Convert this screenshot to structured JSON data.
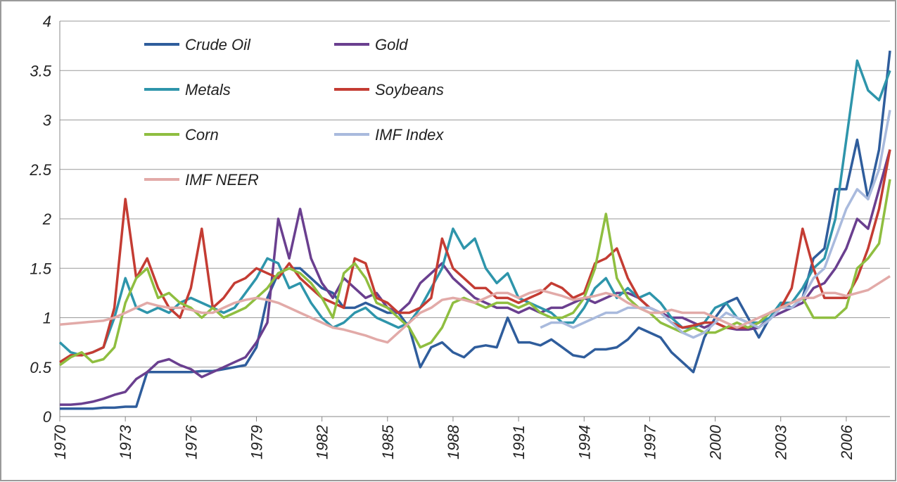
{
  "chart_data": {
    "type": "line",
    "x": [
      1970,
      1970.5,
      1971,
      1971.5,
      1972,
      1972.5,
      1973,
      1973.5,
      1974,
      1974.5,
      1975,
      1975.5,
      1976,
      1976.5,
      1977,
      1977.5,
      1978,
      1978.5,
      1979,
      1979.5,
      1980,
      1980.5,
      1981,
      1981.5,
      1982,
      1982.5,
      1983,
      1983.5,
      1984,
      1984.5,
      1985,
      1985.5,
      1986,
      1986.5,
      1987,
      1987.5,
      1988,
      1988.5,
      1989,
      1989.5,
      1990,
      1990.5,
      1991,
      1991.5,
      1992,
      1992.5,
      1993,
      1993.5,
      1994,
      1994.5,
      1995,
      1995.5,
      1996,
      1996.5,
      1997,
      1997.5,
      1998,
      1998.5,
      1999,
      1999.5,
      2000,
      2000.5,
      2001,
      2001.5,
      2002,
      2002.5,
      2003,
      2003.5,
      2004,
      2004.5,
      2005,
      2005.5,
      2006,
      2006.5,
      2007,
      2007.5,
      2008
    ],
    "series": [
      {
        "name": "Crude Oil",
        "color": "#2f5d9c",
        "values": [
          0.08,
          0.08,
          0.08,
          0.08,
          0.09,
          0.09,
          0.1,
          0.1,
          0.45,
          0.45,
          0.45,
          0.45,
          0.45,
          0.46,
          0.46,
          0.48,
          0.5,
          0.52,
          0.7,
          1.2,
          1.45,
          1.5,
          1.5,
          1.4,
          1.3,
          1.25,
          1.1,
          1.1,
          1.15,
          1.1,
          1.05,
          1.05,
          0.9,
          0.5,
          0.7,
          0.75,
          0.65,
          0.6,
          0.7,
          0.72,
          0.7,
          1.0,
          0.75,
          0.75,
          0.72,
          0.78,
          0.7,
          0.62,
          0.6,
          0.68,
          0.68,
          0.7,
          0.78,
          0.9,
          0.85,
          0.8,
          0.65,
          0.55,
          0.45,
          0.8,
          1.0,
          1.15,
          1.2,
          1.0,
          0.8,
          1.0,
          1.15,
          1.1,
          1.2,
          1.6,
          1.7,
          2.3,
          2.3,
          2.8,
          2.2,
          2.7,
          3.7
        ]
      },
      {
        "name": "Gold",
        "color": "#6a3f8f",
        "values": [
          0.12,
          0.12,
          0.13,
          0.15,
          0.18,
          0.22,
          0.25,
          0.38,
          0.45,
          0.55,
          0.58,
          0.52,
          0.48,
          0.4,
          0.45,
          0.5,
          0.55,
          0.6,
          0.75,
          0.95,
          2.0,
          1.6,
          2.1,
          1.6,
          1.35,
          1.2,
          1.4,
          1.3,
          1.2,
          1.25,
          1.1,
          1.05,
          1.15,
          1.35,
          1.45,
          1.55,
          1.4,
          1.3,
          1.2,
          1.15,
          1.1,
          1.1,
          1.05,
          1.1,
          1.05,
          1.1,
          1.1,
          1.15,
          1.2,
          1.15,
          1.2,
          1.25,
          1.25,
          1.2,
          1.1,
          1.05,
          1.0,
          1.0,
          0.95,
          0.9,
          0.95,
          0.9,
          0.88,
          0.88,
          0.9,
          1.0,
          1.05,
          1.1,
          1.15,
          1.3,
          1.35,
          1.5,
          1.7,
          2.0,
          1.9,
          2.3,
          2.7
        ]
      },
      {
        "name": "Metals",
        "color": "#2e95ab",
        "values": [
          0.75,
          0.65,
          0.62,
          0.65,
          0.7,
          1.0,
          1.4,
          1.1,
          1.05,
          1.1,
          1.05,
          1.15,
          1.2,
          1.15,
          1.1,
          1.05,
          1.1,
          1.25,
          1.4,
          1.6,
          1.55,
          1.3,
          1.35,
          1.15,
          1.0,
          0.9,
          0.95,
          1.05,
          1.1,
          1.0,
          0.95,
          0.9,
          0.95,
          1.1,
          1.3,
          1.5,
          1.9,
          1.7,
          1.8,
          1.5,
          1.35,
          1.45,
          1.2,
          1.15,
          1.1,
          1.05,
          0.95,
          0.95,
          1.1,
          1.3,
          1.4,
          1.2,
          1.3,
          1.2,
          1.25,
          1.15,
          1.0,
          0.9,
          0.9,
          0.95,
          1.1,
          1.15,
          1.0,
          0.95,
          0.95,
          1.0,
          1.15,
          1.15,
          1.3,
          1.5,
          1.6,
          2.0,
          2.8,
          3.6,
          3.3,
          3.2,
          3.5
        ]
      },
      {
        "name": "Soybeans",
        "color": "#c43c33",
        "values": [
          0.55,
          0.62,
          0.62,
          0.65,
          0.7,
          1.1,
          2.2,
          1.4,
          1.6,
          1.3,
          1.1,
          1.0,
          1.3,
          1.9,
          1.1,
          1.2,
          1.35,
          1.4,
          1.5,
          1.45,
          1.4,
          1.55,
          1.4,
          1.3,
          1.2,
          1.15,
          1.1,
          1.6,
          1.55,
          1.2,
          1.15,
          1.05,
          1.05,
          1.1,
          1.2,
          1.8,
          1.5,
          1.4,
          1.3,
          1.3,
          1.2,
          1.2,
          1.15,
          1.2,
          1.25,
          1.35,
          1.3,
          1.2,
          1.25,
          1.55,
          1.6,
          1.7,
          1.4,
          1.2,
          1.1,
          1.05,
          0.95,
          0.9,
          0.92,
          0.95,
          0.95,
          0.9,
          0.9,
          0.9,
          0.95,
          1.05,
          1.1,
          1.3,
          1.9,
          1.5,
          1.2,
          1.2,
          1.2,
          1.4,
          1.7,
          2.1,
          2.7
        ]
      },
      {
        "name": "Corn",
        "color": "#8fbe40",
        "values": [
          0.52,
          0.6,
          0.65,
          0.55,
          0.58,
          0.7,
          1.15,
          1.4,
          1.5,
          1.2,
          1.25,
          1.15,
          1.1,
          1.0,
          1.1,
          1.0,
          1.05,
          1.1,
          1.2,
          1.3,
          1.45,
          1.5,
          1.45,
          1.35,
          1.2,
          1.0,
          1.45,
          1.55,
          1.4,
          1.15,
          1.1,
          1.0,
          0.9,
          0.7,
          0.75,
          0.9,
          1.15,
          1.2,
          1.15,
          1.1,
          1.15,
          1.15,
          1.1,
          1.15,
          1.05,
          1.0,
          1.0,
          1.05,
          1.2,
          1.5,
          2.05,
          1.4,
          1.2,
          1.1,
          1.05,
          0.95,
          0.9,
          0.85,
          0.9,
          0.85,
          0.85,
          0.9,
          0.95,
          0.9,
          0.95,
          1.05,
          1.1,
          1.15,
          1.2,
          1.0,
          1.0,
          1.0,
          1.1,
          1.5,
          1.6,
          1.75,
          2.4
        ]
      },
      {
        "name": "IMF Index",
        "color": "#a9badd",
        "values": [
          null,
          null,
          null,
          null,
          null,
          null,
          null,
          null,
          null,
          null,
          null,
          null,
          null,
          null,
          null,
          null,
          null,
          null,
          null,
          null,
          null,
          null,
          null,
          null,
          null,
          null,
          null,
          null,
          null,
          null,
          null,
          null,
          null,
          null,
          null,
          null,
          null,
          null,
          null,
          null,
          null,
          null,
          null,
          null,
          0.9,
          0.95,
          0.95,
          0.9,
          0.95,
          1.0,
          1.05,
          1.05,
          1.1,
          1.1,
          1.1,
          1.05,
          0.95,
          0.85,
          0.8,
          0.85,
          0.95,
          1.05,
          1.0,
          0.95,
          0.9,
          0.98,
          1.1,
          1.1,
          1.2,
          1.4,
          1.5,
          1.8,
          2.1,
          2.3,
          2.2,
          2.5,
          3.1
        ]
      },
      {
        "name": "IMF NEER",
        "color": "#e2aaa8",
        "values": [
          0.93,
          0.94,
          0.95,
          0.96,
          0.97,
          1.0,
          1.05,
          1.1,
          1.15,
          1.12,
          1.1,
          1.1,
          1.08,
          1.05,
          1.05,
          1.1,
          1.15,
          1.18,
          1.2,
          1.18,
          1.15,
          1.1,
          1.05,
          1.0,
          0.95,
          0.9,
          0.88,
          0.85,
          0.82,
          0.78,
          0.75,
          0.85,
          0.95,
          1.05,
          1.1,
          1.18,
          1.2,
          1.18,
          1.15,
          1.2,
          1.25,
          1.25,
          1.2,
          1.25,
          1.28,
          1.25,
          1.22,
          1.18,
          1.2,
          1.22,
          1.25,
          1.22,
          1.15,
          1.1,
          1.05,
          1.05,
          1.08,
          1.05,
          1.05,
          1.05,
          1.0,
          0.95,
          0.9,
          0.95,
          1.0,
          1.05,
          1.1,
          1.15,
          1.2,
          1.2,
          1.25,
          1.25,
          1.22,
          1.25,
          1.28,
          1.35,
          1.42
        ]
      }
    ],
    "xlim": [
      1970,
      2008
    ],
    "xticks": [
      1970,
      1973,
      1976,
      1979,
      1982,
      1985,
      1988,
      1991,
      1994,
      1997,
      2000,
      2003,
      2006
    ],
    "ylim": [
      0,
      4
    ],
    "yticks": [
      0,
      0.5,
      1,
      1.5,
      2,
      2.5,
      3,
      3.5,
      4
    ],
    "grid": true,
    "legend": "upper left"
  }
}
